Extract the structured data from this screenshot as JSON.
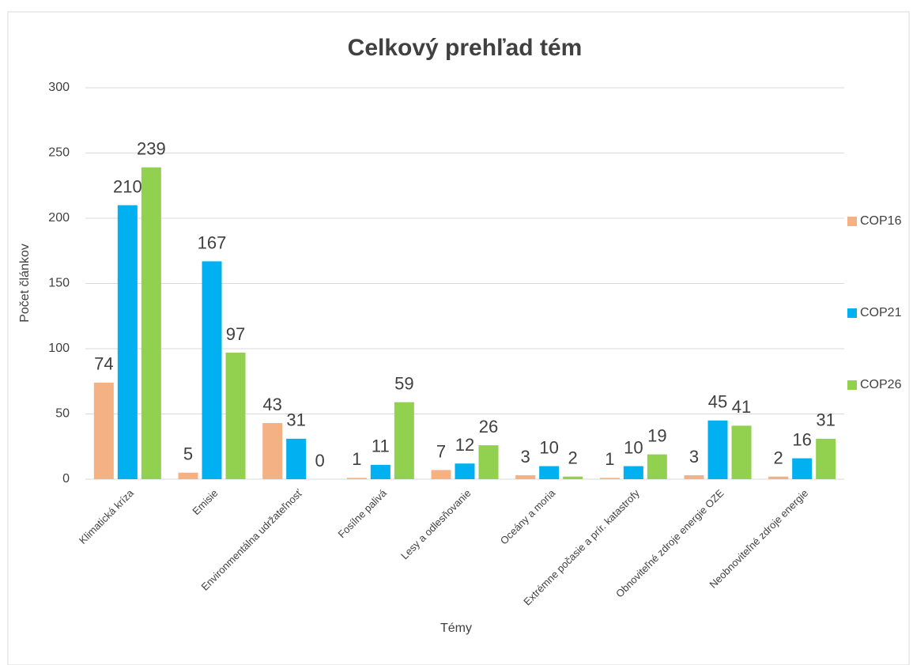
{
  "chart_data": {
    "type": "bar",
    "title": "Celkový prehľad tém",
    "x_label": "Témy",
    "y_label": "Počet článkov",
    "categories": [
      "Klimatická kríza",
      "Emisie",
      "Environmentálna udržateľnosť",
      "Fosílne palivá",
      "Lesy a odlesňovanie",
      "Oceány a moria",
      "Extrémne počasie a prír. katastrofy",
      "Obnoviteľné zdroje energie OZE",
      "Neobnoviteľné zdroje energie"
    ],
    "series": [
      {
        "name": "COP16",
        "color": "#f4b183",
        "values": [
          74,
          5,
          43,
          1,
          7,
          3,
          1,
          3,
          2
        ]
      },
      {
        "name": "COP21",
        "color": "#00b0f0",
        "values": [
          210,
          167,
          31,
          11,
          12,
          10,
          10,
          45,
          16
        ]
      },
      {
        "name": "COP26",
        "color": "#92d050",
        "values": [
          239,
          97,
          0,
          59,
          26,
          2,
          19,
          41,
          31
        ]
      }
    ],
    "ylim": [
      0,
      300
    ],
    "yticks": [
      0,
      50,
      100,
      150,
      200,
      250,
      300
    ],
    "grid": true,
    "legend": "right"
  }
}
